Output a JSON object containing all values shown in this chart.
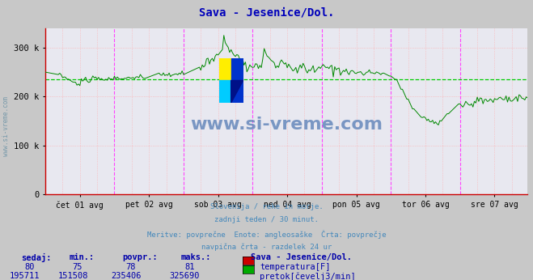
{
  "title": "Sava - Jesenice/Dol.",
  "title_color": "#0000bb",
  "bg_color": "#c8c8c8",
  "plot_bg_color": "#e8e8f0",
  "grid_color_minor": "#ffaaaa",
  "grid_color_major": "#ff44ff",
  "avg_line_color": "#00cc00",
  "line_color": "#008800",
  "axis_color_bottom": "#cc0000",
  "axis_color_left": "#cc0000",
  "ylim": [
    0,
    340000
  ],
  "yticks": [
    0,
    100000,
    200000,
    300000
  ],
  "ytick_labels": [
    "0",
    "100 k",
    "200 k",
    "300 k"
  ],
  "xlabel_days": [
    "čet 01 avg",
    "pet 02 avg",
    "sob 03 avg",
    "ned 04 avg",
    "pon 05 avg",
    "tor 06 avg",
    "sre 07 avg"
  ],
  "avg_value": 235406,
  "subtitle_lines": [
    "Slovenija / reke in morje.",
    "zadnji teden / 30 minut.",
    "Meritve: povprečne  Enote: angleosaške  Črta: povprečje",
    "navpična črta - razdelek 24 ur"
  ],
  "table_headers": [
    "sedaj:",
    "min.:",
    "povpr.:",
    "maks.:"
  ],
  "row1_values": [
    "80",
    "75",
    "78",
    "81"
  ],
  "row2_values": [
    "195711",
    "151508",
    "235406",
    "325690"
  ],
  "legend_label1": "temperatura[F]",
  "legend_label2": "pretok[čevelj3/min]",
  "legend_color1": "#cc0000",
  "legend_color2": "#00aa00",
  "station_label": "Sava - Jesenice/Dol.",
  "text_color": "#0000aa",
  "watermark": "www.si-vreme.com",
  "watermark_color": "#6688bb",
  "sidebar_text": "www.si-vreme.com",
  "sidebar_color": "#7799aa",
  "logo_yellow": "#ffee00",
  "logo_cyan": "#00ccff",
  "logo_blue": "#0033cc",
  "logo_darkblue": "#001188"
}
